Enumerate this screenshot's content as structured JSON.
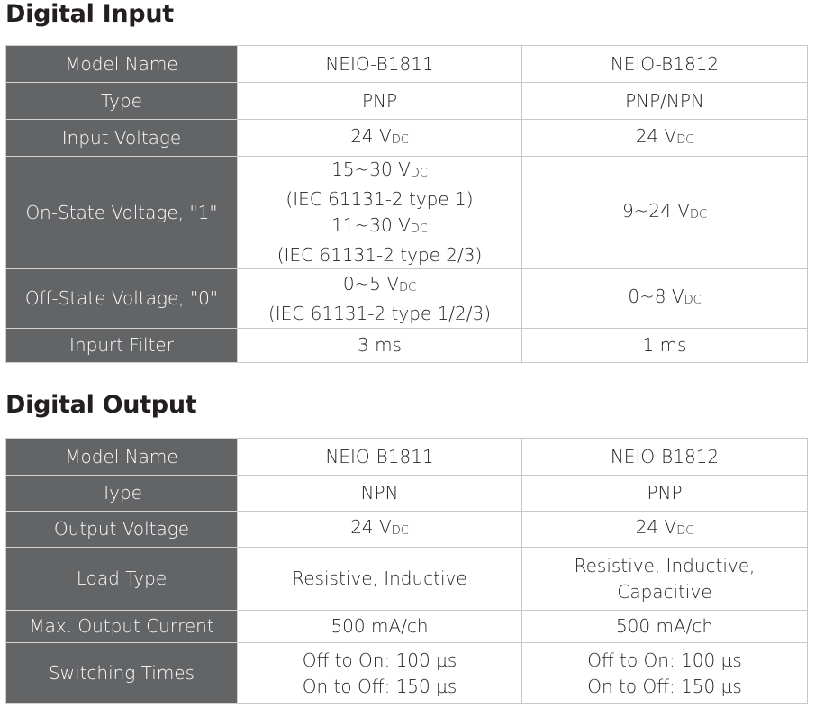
{
  "digital_input": {
    "title": "Digital Input",
    "rows": [
      {
        "label": "Model Name",
        "cells": [
          [
            {
              "text": "NEIO-B1811"
            }
          ],
          [
            {
              "text": "NEIO-B1812"
            }
          ]
        ]
      },
      {
        "label": "Type",
        "cells": [
          [
            {
              "text": "PNP"
            }
          ],
          [
            {
              "text": "PNP/NPN"
            }
          ]
        ]
      },
      {
        "label": "Input Voltage",
        "cells": [
          [
            {
              "text": "24 V",
              "sub": "DC"
            }
          ],
          [
            {
              "text": "24 V",
              "sub": "DC"
            }
          ]
        ]
      },
      {
        "label": "On-State Voltage, \"1\"",
        "cells": [
          [
            {
              "text": "15~30 V",
              "sub": "DC"
            },
            {
              "text": "(IEC 61131-2 type 1)"
            },
            {
              "text": "11~30 V",
              "sub": "DC"
            },
            {
              "text": "(IEC 61131-2 type 2/3)"
            }
          ],
          [
            {
              "text": "9~24 V",
              "sub": "DC"
            }
          ]
        ]
      },
      {
        "label": "Off-State Voltage, \"0\"",
        "cells": [
          [
            {
              "text": "0~5 V",
              "sub": "DC"
            },
            {
              "text": "(IEC 61131-2 type 1/2/3)"
            }
          ],
          [
            {
              "text": "0~8 V",
              "sub": "DC"
            }
          ]
        ]
      },
      {
        "label": "Inpurt Filter",
        "cells": [
          [
            {
              "text": "3 ms"
            }
          ],
          [
            {
              "text": "1 ms"
            }
          ]
        ]
      }
    ]
  },
  "digital_output": {
    "title": "Digital Output",
    "rows": [
      {
        "label": "Model Name",
        "cells": [
          [
            {
              "text": "NEIO-B1811"
            }
          ],
          [
            {
              "text": "NEIO-B1812"
            }
          ]
        ]
      },
      {
        "label": "Type",
        "cells": [
          [
            {
              "text": "NPN"
            }
          ],
          [
            {
              "text": "PNP"
            }
          ]
        ]
      },
      {
        "label": "Output Voltage",
        "cells": [
          [
            {
              "text": "24 V",
              "sub": "DC"
            }
          ],
          [
            {
              "text": "24 V",
              "sub": "DC"
            }
          ]
        ]
      },
      {
        "label": "Load Type",
        "cells": [
          [
            {
              "text": "Resistive, Inductive"
            }
          ],
          [
            {
              "text": "Resistive, Inductive,"
            },
            {
              "text": "Capacitive"
            }
          ]
        ]
      },
      {
        "label": "Max. Output Current",
        "cells": [
          [
            {
              "text": "500 mA/ch"
            }
          ],
          [
            {
              "text": "500 mA/ch"
            }
          ]
        ]
      },
      {
        "label": "Switching Times",
        "cells": [
          [
            {
              "text": "Off to On: 100 µs"
            },
            {
              "text": "On to Off: 150 µs"
            }
          ],
          [
            {
              "text": "Off to On: 100 µs"
            },
            {
              "text": "On to Off: 150 µs"
            }
          ]
        ]
      }
    ]
  }
}
